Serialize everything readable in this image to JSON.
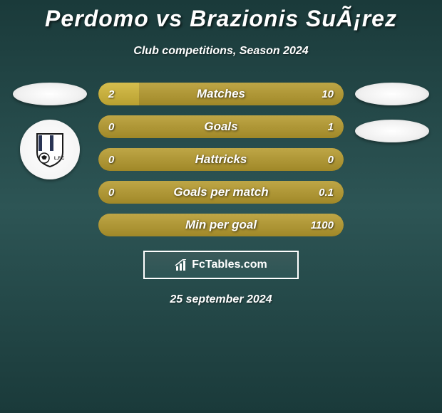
{
  "header": {
    "title": "Perdomo vs Brazionis SuÃ¡rez",
    "subtitle": "Club competitions, Season 2024"
  },
  "colors": {
    "left_bar": "#b8a030",
    "right_bar": "#a08828",
    "bar_empty": "#6b5c1a",
    "background_top": "#1a3a3a",
    "background_mid": "#2d5555"
  },
  "stats": [
    {
      "label": "Matches",
      "left_value": "2",
      "right_value": "10",
      "left_pct": 16.7,
      "right_pct": 83.3,
      "left_color": "#b8a030",
      "right_color": "#a08828"
    },
    {
      "label": "Goals",
      "left_value": "0",
      "right_value": "1",
      "left_pct": 0,
      "right_pct": 100,
      "left_color": "#b8a030",
      "right_color": "#a08828"
    },
    {
      "label": "Hattricks",
      "left_value": "0",
      "right_value": "0",
      "left_pct": 50,
      "right_pct": 50,
      "left_color": "#a08828",
      "right_color": "#a08828"
    },
    {
      "label": "Goals per match",
      "left_value": "0",
      "right_value": "0.1",
      "left_pct": 0,
      "right_pct": 100,
      "left_color": "#b8a030",
      "right_color": "#a08828"
    },
    {
      "label": "Min per goal",
      "left_value": "",
      "right_value": "1100",
      "left_pct": 0,
      "right_pct": 100,
      "left_color": "#b8a030",
      "right_color": "#a08828"
    }
  ],
  "watermark": {
    "text": "FcTables.com"
  },
  "footer": {
    "date": "25 september 2024"
  }
}
